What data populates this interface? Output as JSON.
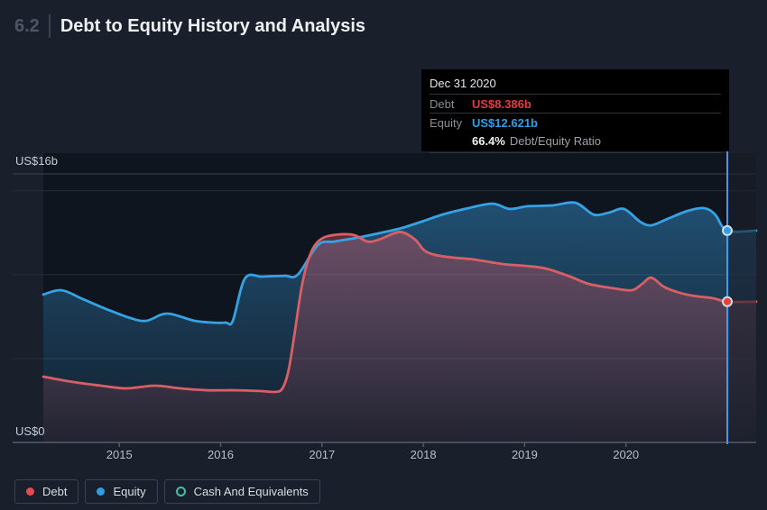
{
  "header": {
    "section": "6.2",
    "title": "Debt to Equity History and Analysis"
  },
  "tooltip": {
    "date": "Dec 31 2020",
    "debt_label": "Debt",
    "debt_value": "US$8.386b",
    "equity_label": "Equity",
    "equity_value": "US$12.621b",
    "ratio_value": "66.4%",
    "ratio_label": "Debt/Equity Ratio"
  },
  "axes": {
    "y_top_label": "US$16b",
    "y_bottom_label": "US$0",
    "years": [
      "2015",
      "2016",
      "2017",
      "2018",
      "2019",
      "2020"
    ]
  },
  "legend": [
    {
      "label": "Debt",
      "color": "#e8494e",
      "style": "filled"
    },
    {
      "label": "Equity",
      "color": "#2b9fe6",
      "style": "filled"
    },
    {
      "label": "Cash And Equivalents",
      "color": "#3fc1ad",
      "style": "outline"
    }
  ],
  "colors": {
    "page_bg": "#1a202b",
    "plot_bg": "#0f151e",
    "debt_line": "#d95f66",
    "equity_line": "#36a2e4",
    "hover_line": "#3e9be8",
    "grid_major": "#3b434f",
    "grid_minor": "#272d38",
    "axis_line": "#545c6a",
    "marker_ring": "#d5dbe3",
    "debt_marker": "#e2403f",
    "equity_marker": "#2f9fe8"
  },
  "chart_data": {
    "type": "area",
    "title": "Debt to Equity History and Analysis",
    "x_unit": "year (decimal)",
    "y_unit": "US$ billions",
    "xlim": [
      2014.25,
      2021.0
    ],
    "ylim": [
      0,
      16
    ],
    "gridlines_y_minor": [
      5,
      10,
      15
    ],
    "gridlines_y_labeled": [
      0,
      16
    ],
    "x_ticks": [
      2015,
      2016,
      2017,
      2018,
      2019,
      2020
    ],
    "legend_position": "bottom-left",
    "hover_point": {
      "x": 2021.0,
      "date": "Dec 31 2020",
      "debt": 8.386,
      "equity": 12.621,
      "ratio_pct": 66.4
    },
    "series": [
      {
        "name": "Equity",
        "points": [
          [
            2014.25,
            8.81
          ],
          [
            2014.43,
            9.07
          ],
          [
            2014.64,
            8.54
          ],
          [
            2014.87,
            7.95
          ],
          [
            2015.11,
            7.41
          ],
          [
            2015.27,
            7.25
          ],
          [
            2015.47,
            7.68
          ],
          [
            2015.74,
            7.25
          ],
          [
            2015.92,
            7.14
          ],
          [
            2016.05,
            7.14
          ],
          [
            2016.12,
            7.25
          ],
          [
            2016.24,
            9.77
          ],
          [
            2016.41,
            9.88
          ],
          [
            2016.63,
            9.93
          ],
          [
            2016.76,
            9.99
          ],
          [
            2016.96,
            11.76
          ],
          [
            2017.12,
            11.97
          ],
          [
            2017.34,
            12.19
          ],
          [
            2017.56,
            12.46
          ],
          [
            2017.79,
            12.78
          ],
          [
            2018.01,
            13.21
          ],
          [
            2018.19,
            13.58
          ],
          [
            2018.41,
            13.91
          ],
          [
            2018.68,
            14.23
          ],
          [
            2018.85,
            13.91
          ],
          [
            2019.03,
            14.07
          ],
          [
            2019.27,
            14.12
          ],
          [
            2019.5,
            14.28
          ],
          [
            2019.68,
            13.58
          ],
          [
            2019.83,
            13.69
          ],
          [
            2019.98,
            13.91
          ],
          [
            2020.14,
            13.15
          ],
          [
            2020.25,
            12.94
          ],
          [
            2020.41,
            13.32
          ],
          [
            2020.61,
            13.8
          ],
          [
            2020.77,
            13.96
          ],
          [
            2020.88,
            13.58
          ],
          [
            2021.0,
            12.621
          ]
        ]
      },
      {
        "name": "Debt",
        "points": [
          [
            2014.25,
            3.92
          ],
          [
            2014.49,
            3.65
          ],
          [
            2014.82,
            3.38
          ],
          [
            2015.07,
            3.22
          ],
          [
            2015.35,
            3.38
          ],
          [
            2015.6,
            3.22
          ],
          [
            2015.87,
            3.11
          ],
          [
            2016.16,
            3.11
          ],
          [
            2016.4,
            3.06
          ],
          [
            2016.54,
            3.01
          ],
          [
            2016.61,
            3.22
          ],
          [
            2016.67,
            4.3
          ],
          [
            2016.73,
            6.5
          ],
          [
            2016.8,
            9.29
          ],
          [
            2016.86,
            10.79
          ],
          [
            2016.93,
            11.76
          ],
          [
            2017.03,
            12.24
          ],
          [
            2017.19,
            12.4
          ],
          [
            2017.32,
            12.35
          ],
          [
            2017.45,
            11.97
          ],
          [
            2017.56,
            12.08
          ],
          [
            2017.71,
            12.46
          ],
          [
            2017.8,
            12.51
          ],
          [
            2017.92,
            12.08
          ],
          [
            2018.01,
            11.44
          ],
          [
            2018.12,
            11.17
          ],
          [
            2018.3,
            11.01
          ],
          [
            2018.5,
            10.9
          ],
          [
            2018.78,
            10.63
          ],
          [
            2019.01,
            10.52
          ],
          [
            2019.21,
            10.36
          ],
          [
            2019.45,
            9.88
          ],
          [
            2019.63,
            9.45
          ],
          [
            2019.88,
            9.18
          ],
          [
            2020.06,
            9.07
          ],
          [
            2020.16,
            9.45
          ],
          [
            2020.25,
            9.82
          ],
          [
            2020.37,
            9.29
          ],
          [
            2020.5,
            8.97
          ],
          [
            2020.65,
            8.75
          ],
          [
            2020.86,
            8.59
          ],
          [
            2021.0,
            8.386
          ]
        ]
      },
      {
        "name": "Cash And Equivalents",
        "points": []
      }
    ]
  }
}
